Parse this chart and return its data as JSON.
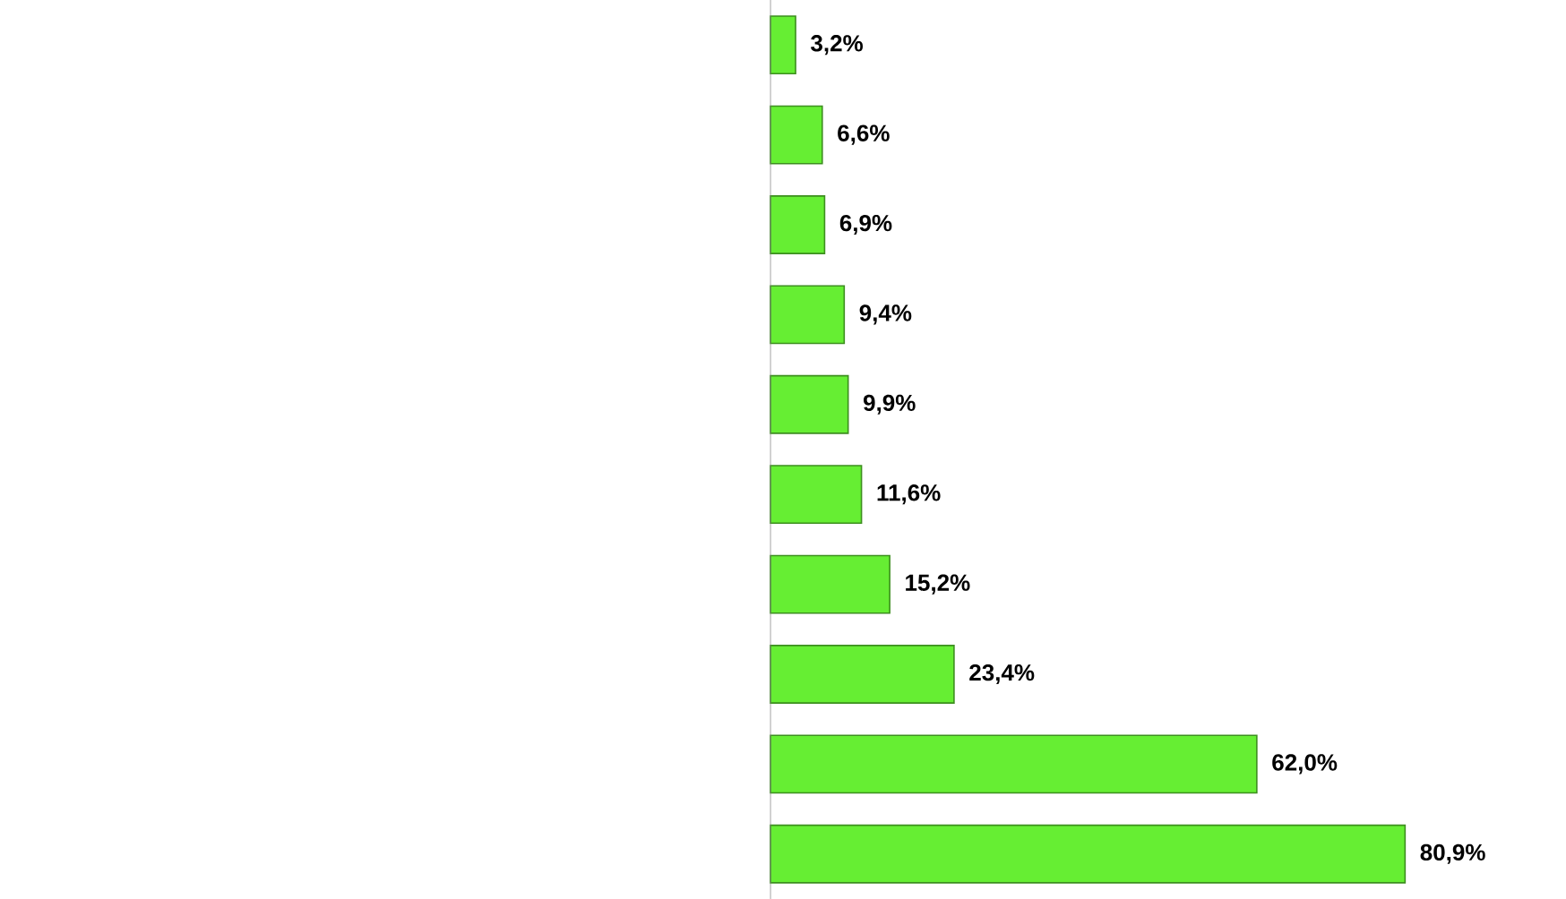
{
  "chart_data": {
    "type": "bar",
    "orientation": "horizontal",
    "categories": [
      null,
      null,
      null,
      null,
      null,
      null,
      null,
      null,
      null,
      null
    ],
    "values": [
      3.2,
      6.6,
      6.9,
      9.4,
      9.9,
      11.6,
      15.2,
      23.4,
      62.0,
      80.9
    ],
    "value_labels": [
      "3,2%",
      "6,6%",
      "6,9%",
      "9,4%",
      "9,9%",
      "11,6%",
      "15,2%",
      "23,4%",
      "62,0%",
      "80,9%"
    ],
    "color": "#66ee33"
  }
}
